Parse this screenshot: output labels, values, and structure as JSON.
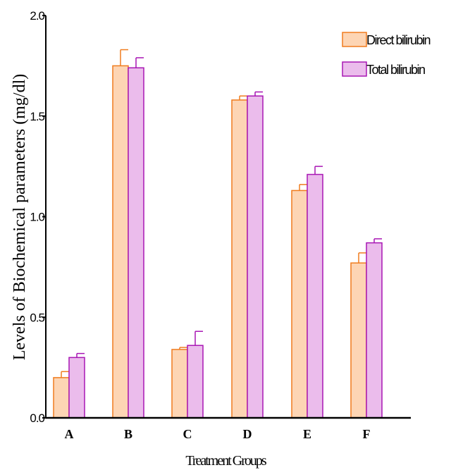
{
  "chart_data": {
    "type": "bar",
    "categories": [
      "A",
      "B",
      "C",
      "D",
      "E",
      "F"
    ],
    "series": [
      {
        "name": "Direct bilirubin",
        "values": [
          0.2,
          1.75,
          0.34,
          1.58,
          1.13,
          0.77
        ],
        "errors": [
          0.03,
          0.08,
          0.01,
          0.02,
          0.03,
          0.05
        ],
        "fill": "#fdd5b4",
        "stroke": "#f07c1e"
      },
      {
        "name": "Total bilirubin",
        "values": [
          0.3,
          1.74,
          0.36,
          1.6,
          1.21,
          0.87
        ],
        "errors": [
          0.02,
          0.05,
          0.07,
          0.02,
          0.04,
          0.02
        ],
        "fill": "#ebbcec",
        "stroke": "#a816b4"
      }
    ],
    "xlabel": "Treatment Groups",
    "ylabel": "Levels of Biochemical parameters (mg/dl)",
    "ylim": [
      0,
      2.0
    ],
    "yticks": [
      {
        "value": 0,
        "label": "0.0"
      },
      {
        "value": 0.5,
        "label": "0.5"
      },
      {
        "value": 1.0,
        "label": "1.0"
      },
      {
        "value": 1.5,
        "label": "1.5"
      },
      {
        "value": 2.0,
        "label": "2.0"
      }
    ],
    "legend": "top-right",
    "grid": false
  }
}
